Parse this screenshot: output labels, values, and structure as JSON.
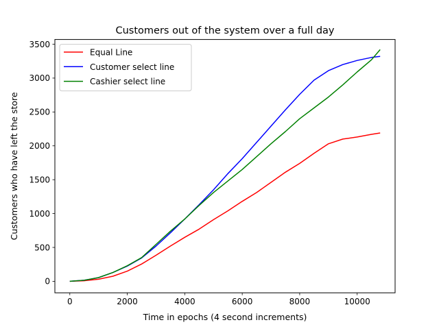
{
  "chart_data": {
    "type": "line",
    "title": "Customers out of the system over a full day",
    "xlabel": "Time in epochs (4 second increments)",
    "ylabel": "Customers who have left the store",
    "xlim": [
      -520,
      11320
    ],
    "ylim": [
      -170,
      3570
    ],
    "xticks": [
      0,
      2000,
      4000,
      6000,
      8000,
      10000
    ],
    "yticks": [
      0,
      500,
      1000,
      1500,
      2000,
      2500,
      3000,
      3500
    ],
    "grid": false,
    "legend_position": "top-left",
    "series": [
      {
        "name": "Equal Line",
        "color": "#ff0000",
        "x": [
          0,
          500,
          1000,
          1500,
          2000,
          2500,
          3000,
          3500,
          4000,
          4500,
          5000,
          5500,
          6000,
          6500,
          7000,
          7500,
          8000,
          8500,
          9000,
          9500,
          10000,
          10500,
          10800
        ],
        "y": [
          0,
          8,
          30,
          75,
          150,
          255,
          385,
          520,
          650,
          770,
          910,
          1040,
          1180,
          1310,
          1460,
          1610,
          1740,
          1890,
          2030,
          2100,
          2130,
          2170,
          2190
        ]
      },
      {
        "name": "Customer select line",
        "color": "#0000ff",
        "x": [
          0,
          500,
          1000,
          1500,
          2000,
          2500,
          3000,
          3500,
          4000,
          4500,
          5000,
          5500,
          6000,
          6500,
          7000,
          7500,
          8000,
          8500,
          9000,
          9500,
          10000,
          10500,
          10800
        ],
        "y": [
          0,
          15,
          55,
          130,
          225,
          345,
          520,
          715,
          920,
          1130,
          1350,
          1590,
          1810,
          2050,
          2290,
          2530,
          2760,
          2970,
          3110,
          3200,
          3260,
          3305,
          3320
        ]
      },
      {
        "name": "Cashier select line",
        "color": "#008000",
        "x": [
          0,
          500,
          1000,
          1500,
          2000,
          2500,
          3000,
          3500,
          4000,
          4500,
          5000,
          5500,
          6000,
          6500,
          7000,
          7500,
          8000,
          8500,
          9000,
          9500,
          10000,
          10500,
          10800
        ],
        "y": [
          0,
          15,
          55,
          130,
          230,
          350,
          545,
          740,
          920,
          1120,
          1310,
          1480,
          1650,
          1840,
          2030,
          2210,
          2400,
          2560,
          2720,
          2900,
          3090,
          3270,
          3420
        ]
      }
    ]
  }
}
